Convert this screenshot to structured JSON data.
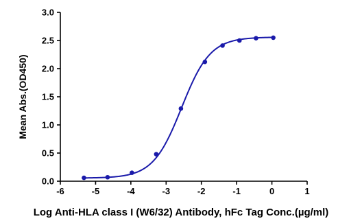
{
  "chart_data": {
    "type": "line",
    "title": "",
    "xlabel": "Log Anti-HLA class I (W6/32) Antibody, hFc Tag Conc.(µg/ml)",
    "ylabel": "Mean Abs.(OD450)",
    "xlim": [
      -6,
      1
    ],
    "ylim": [
      0.0,
      3.0
    ],
    "x_ticks": [
      "-6",
      "-5",
      "-4",
      "-3",
      "-2",
      "-1",
      "0",
      "1"
    ],
    "y_ticks": [
      "0.0",
      "0.5",
      "1.0",
      "1.5",
      "2.0",
      "2.5",
      "3.0"
    ],
    "grid": false,
    "series": [
      {
        "color": "#1a1aaa",
        "points": [
          {
            "x": -5.33,
            "y": 0.06
          },
          {
            "x": -4.66,
            "y": 0.07
          },
          {
            "x": -3.97,
            "y": 0.15
          },
          {
            "x": -3.28,
            "y": 0.48
          },
          {
            "x": -2.58,
            "y": 1.29
          },
          {
            "x": -1.9,
            "y": 2.12
          },
          {
            "x": -1.4,
            "y": 2.41
          },
          {
            "x": -0.92,
            "y": 2.5
          },
          {
            "x": -0.45,
            "y": 2.54
          },
          {
            "x": 0.04,
            "y": 2.55
          }
        ],
        "fit": {
          "model": "4PL",
          "bottom": 0.055,
          "top": 2.56,
          "log_ec50": -2.56,
          "hill_slope": 1.07
        }
      }
    ]
  }
}
